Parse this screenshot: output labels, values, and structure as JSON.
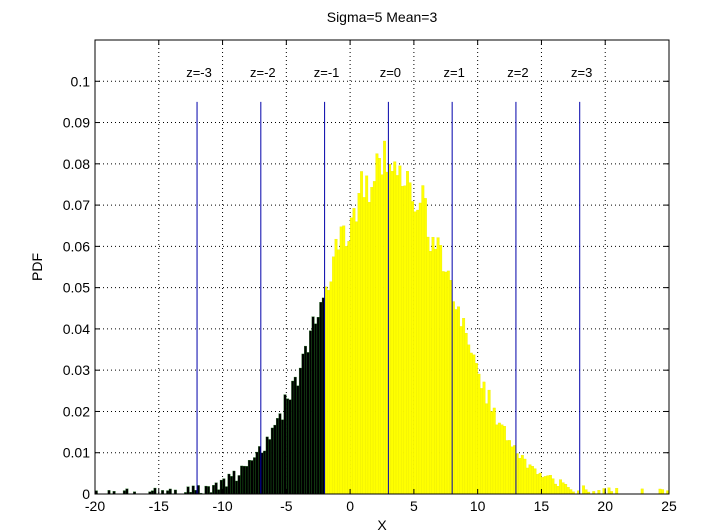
{
  "chart_data": {
    "type": "bar",
    "title": "Sigma=5 Mean=3",
    "xlabel": "X",
    "ylabel": "PDF",
    "xlim": [
      -20,
      25
    ],
    "ylim": [
      0,
      0.11
    ],
    "grid": true,
    "x_ticks": [
      -20,
      -15,
      -10,
      -5,
      0,
      5,
      10,
      15,
      20,
      25
    ],
    "x_tick_labels": [
      "-20",
      "-15",
      "-10",
      "-5",
      "0",
      "5",
      "10",
      "15",
      "20",
      "25"
    ],
    "y_ticks": [
      0,
      0.01,
      0.02,
      0.03,
      0.04,
      0.05,
      0.06,
      0.07,
      0.08,
      0.09,
      0.1
    ],
    "y_tick_labels": [
      "0",
      "0.01",
      "0.02",
      "0.03",
      "0.04",
      "0.05",
      "0.06",
      "0.07",
      "0.08",
      "0.09",
      "0.1"
    ],
    "distribution": {
      "mean": 3,
      "sigma": 5
    },
    "histogram": {
      "bin_start": -20,
      "bin_end": 25,
      "bin_width": 0.2,
      "shade_threshold": -2,
      "color_below_threshold": "#000000",
      "color_above_threshold": "#ffff00",
      "edge_color_above_threshold": "#e5e500",
      "peak_value": 0.09
    },
    "z_lines": [
      {
        "z": -3,
        "x": -12,
        "label": "z=-3",
        "top": 0.095
      },
      {
        "z": -2,
        "x": -7,
        "label": "z=-2",
        "top": 0.095
      },
      {
        "z": -1,
        "x": -2,
        "label": "z=-1",
        "top": 0.095
      },
      {
        "z": 0,
        "x": 3,
        "label": "z=0",
        "top": 0.095
      },
      {
        "z": 1,
        "x": 8,
        "label": "z=1",
        "top": 0.095
      },
      {
        "z": 2,
        "x": 13,
        "label": "z=2",
        "top": 0.095
      },
      {
        "z": 3,
        "x": 18,
        "label": "z=3",
        "top": 0.095
      }
    ],
    "z_line_color": "#0000aa"
  }
}
